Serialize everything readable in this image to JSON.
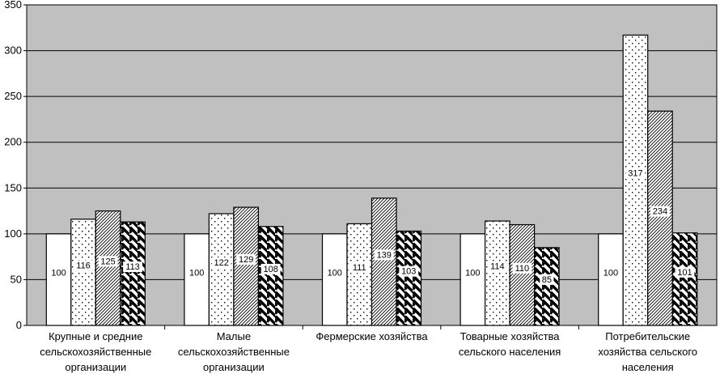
{
  "chart_data": {
    "type": "bar",
    "title": "",
    "xlabel": "",
    "ylabel": "",
    "ylim": [
      0,
      350
    ],
    "yticks": [
      0,
      50,
      100,
      150,
      200,
      250,
      300,
      350
    ],
    "grid": true,
    "plot_background": "#c0c0c0",
    "categories": [
      [
        "Крупные и средние",
        "сельскохозяйственные",
        "организации"
      ],
      [
        "Малые",
        "сельскохозяйственные",
        "организации"
      ],
      [
        "Фермерские хозяйства"
      ],
      [
        "Товарные хозяйства",
        "сельского населения"
      ],
      [
        "Потребительские",
        "хозяйства сельского",
        "населения"
      ]
    ],
    "series": [
      {
        "name": "series-1",
        "pattern": "solid-white",
        "values": [
          100,
          100,
          100,
          100,
          100
        ]
      },
      {
        "name": "series-2",
        "pattern": "dots",
        "values": [
          116,
          122,
          111,
          114,
          317
        ]
      },
      {
        "name": "series-3",
        "pattern": "fine-diagonal",
        "values": [
          125,
          129,
          139,
          110,
          234
        ]
      },
      {
        "name": "series-4",
        "pattern": "wide-diagonal",
        "values": [
          113,
          108,
          103,
          85,
          101
        ]
      }
    ]
  }
}
